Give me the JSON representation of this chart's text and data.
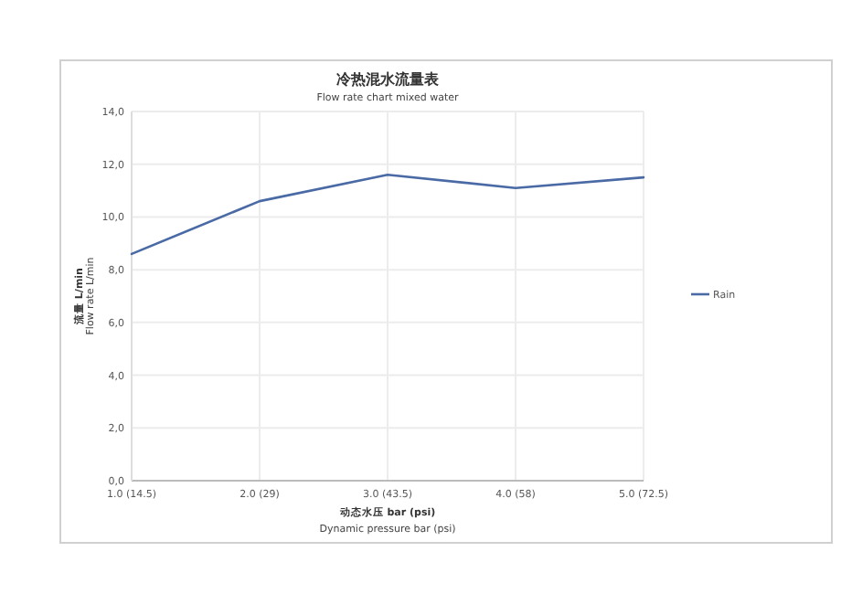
{
  "chart_data": {
    "type": "line",
    "title": "冷热混水流量表",
    "subtitle": "Flow rate chart mixed water",
    "xlabel": "动态水压 bar (psi)",
    "ylabel": "流量 L/min",
    "annotations": [
      "Dynamic pressure bar (psi)",
      "Flow rate L/min"
    ],
    "categories": [
      "1.0 (14.5)",
      "2.0 (29)",
      "3.0 (43.5)",
      "4.0 (58)",
      "5.0 (72.5)"
    ],
    "series": [
      {
        "name": "Rain",
        "color": "#4a6aa5",
        "values": [
          8.6,
          10.6,
          11.6,
          11.1,
          11.5
        ]
      }
    ],
    "ylim": [
      0,
      14
    ],
    "yticks": [
      {
        "value": 0,
        "label": "0,0"
      },
      {
        "value": 2,
        "label": "2,0"
      },
      {
        "value": 4,
        "label": "4,0"
      },
      {
        "value": 6,
        "label": "6,0"
      },
      {
        "value": 8,
        "label": "8,0"
      },
      {
        "value": 10,
        "label": "10,0"
      },
      {
        "value": 12,
        "label": "12,0"
      },
      {
        "value": 14,
        "label": "14,0"
      }
    ],
    "grid": true,
    "legend": "right",
    "marker": "none",
    "line_style": "solid"
  }
}
